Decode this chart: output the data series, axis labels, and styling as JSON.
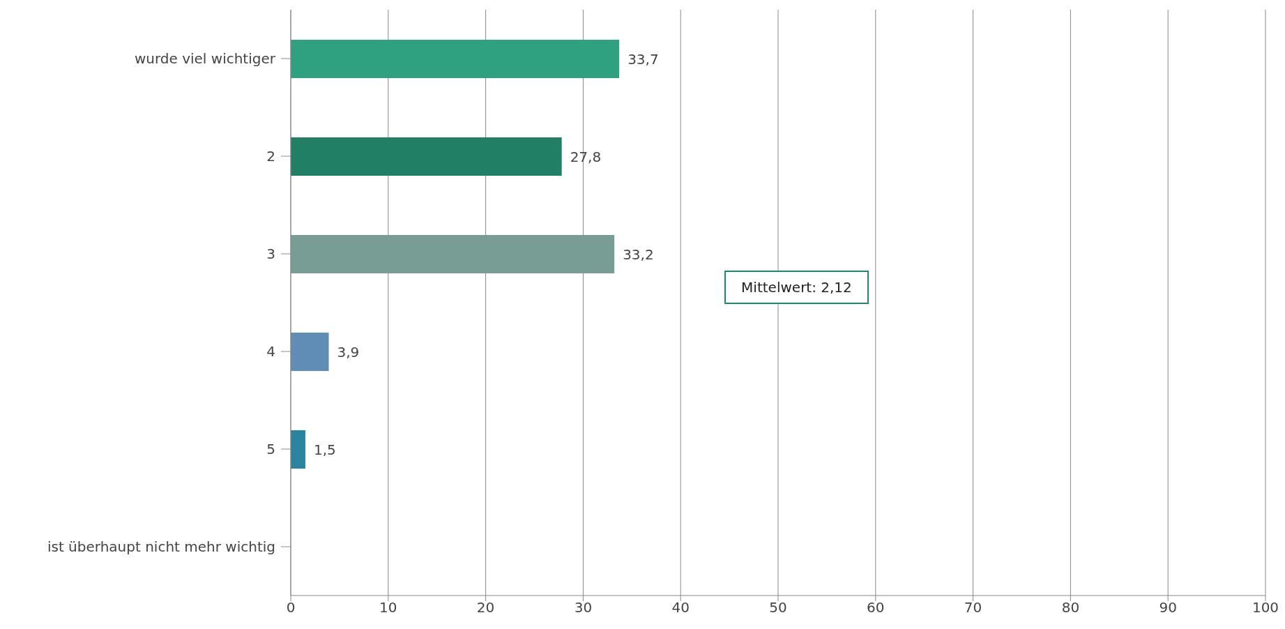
{
  "chart_data": {
    "type": "bar",
    "orientation": "horizontal",
    "categories": [
      "wurde viel wichtiger",
      "2",
      "3",
      "4",
      "5",
      "ist überhaupt nicht mehr wichtig"
    ],
    "values": [
      33.7,
      27.8,
      33.2,
      3.9,
      1.5,
      null
    ],
    "colors": [
      "#2fa080",
      "#217f65",
      "#779d94",
      "#5f8db5",
      "#2a84a0",
      "#2a84a0"
    ],
    "value_labels": [
      "33,7",
      "27,8",
      "33,2",
      "3,9",
      "1,5",
      null
    ],
    "xlim": [
      0,
      100
    ],
    "xticks": [
      0,
      10,
      20,
      30,
      40,
      50,
      60,
      70,
      80,
      90,
      100
    ],
    "grid": "x",
    "annotations": [
      "Mittelwert: 2,12"
    ]
  }
}
